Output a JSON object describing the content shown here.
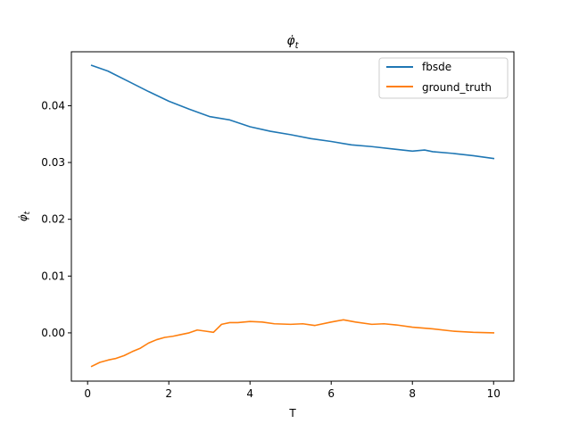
{
  "chart_data": {
    "type": "line",
    "title": "φ̇_t",
    "title_base": "φ̇",
    "title_sub": "t",
    "xlabel": "T",
    "ylabel": "φ̇_t",
    "ylabel_base": "φ̇",
    "ylabel_sub": "t",
    "xlim": [
      -0.4,
      10.5
    ],
    "ylim": [
      -0.0085,
      0.0495
    ],
    "xticks": [
      0,
      2,
      4,
      6,
      8,
      10
    ],
    "xtick_labels": [
      "0",
      "2",
      "4",
      "6",
      "8",
      "10"
    ],
    "yticks": [
      0.0,
      0.01,
      0.02,
      0.03,
      0.04
    ],
    "ytick_labels": [
      "0.00",
      "0.01",
      "0.02",
      "0.03",
      "0.04"
    ],
    "grid": false,
    "legend_position": "top-right",
    "series": [
      {
        "name": "fbsde",
        "color": "#1f77b4",
        "x": [
          0.1,
          0.5,
          1.0,
          1.5,
          2.0,
          2.5,
          3.0,
          3.5,
          4.0,
          4.5,
          5.0,
          5.5,
          6.0,
          6.5,
          7.0,
          7.5,
          8.0,
          8.3,
          8.5,
          9.0,
          9.5,
          10.0
        ],
        "y": [
          0.0471,
          0.0461,
          0.0443,
          0.0425,
          0.0408,
          0.0394,
          0.0381,
          0.0375,
          0.0363,
          0.0355,
          0.0349,
          0.0342,
          0.0337,
          0.0331,
          0.0328,
          0.0324,
          0.032,
          0.0322,
          0.0319,
          0.0316,
          0.0312,
          0.0307
        ]
      },
      {
        "name": "ground_truth",
        "color": "#ff7f0e",
        "x": [
          0.1,
          0.3,
          0.5,
          0.7,
          0.9,
          1.1,
          1.3,
          1.5,
          1.7,
          1.9,
          2.1,
          2.3,
          2.5,
          2.7,
          2.9,
          3.1,
          3.3,
          3.5,
          3.7,
          4.0,
          4.3,
          4.6,
          5.0,
          5.3,
          5.6,
          6.0,
          6.3,
          6.6,
          7.0,
          7.3,
          7.6,
          8.0,
          8.5,
          9.0,
          9.5,
          10.0
        ],
        "y": [
          -0.0059,
          -0.0052,
          -0.0048,
          -0.0045,
          -0.004,
          -0.0033,
          -0.0027,
          -0.0018,
          -0.0012,
          -0.0008,
          -0.0006,
          -0.0003,
          0.0,
          0.0005,
          0.0003,
          0.0001,
          0.0015,
          0.0018,
          0.0018,
          0.002,
          0.0019,
          0.0016,
          0.0015,
          0.0016,
          0.0013,
          0.0019,
          0.0023,
          0.0019,
          0.0015,
          0.0016,
          0.0014,
          0.001,
          0.0007,
          0.0003,
          0.0001,
          0.0
        ]
      }
    ]
  }
}
